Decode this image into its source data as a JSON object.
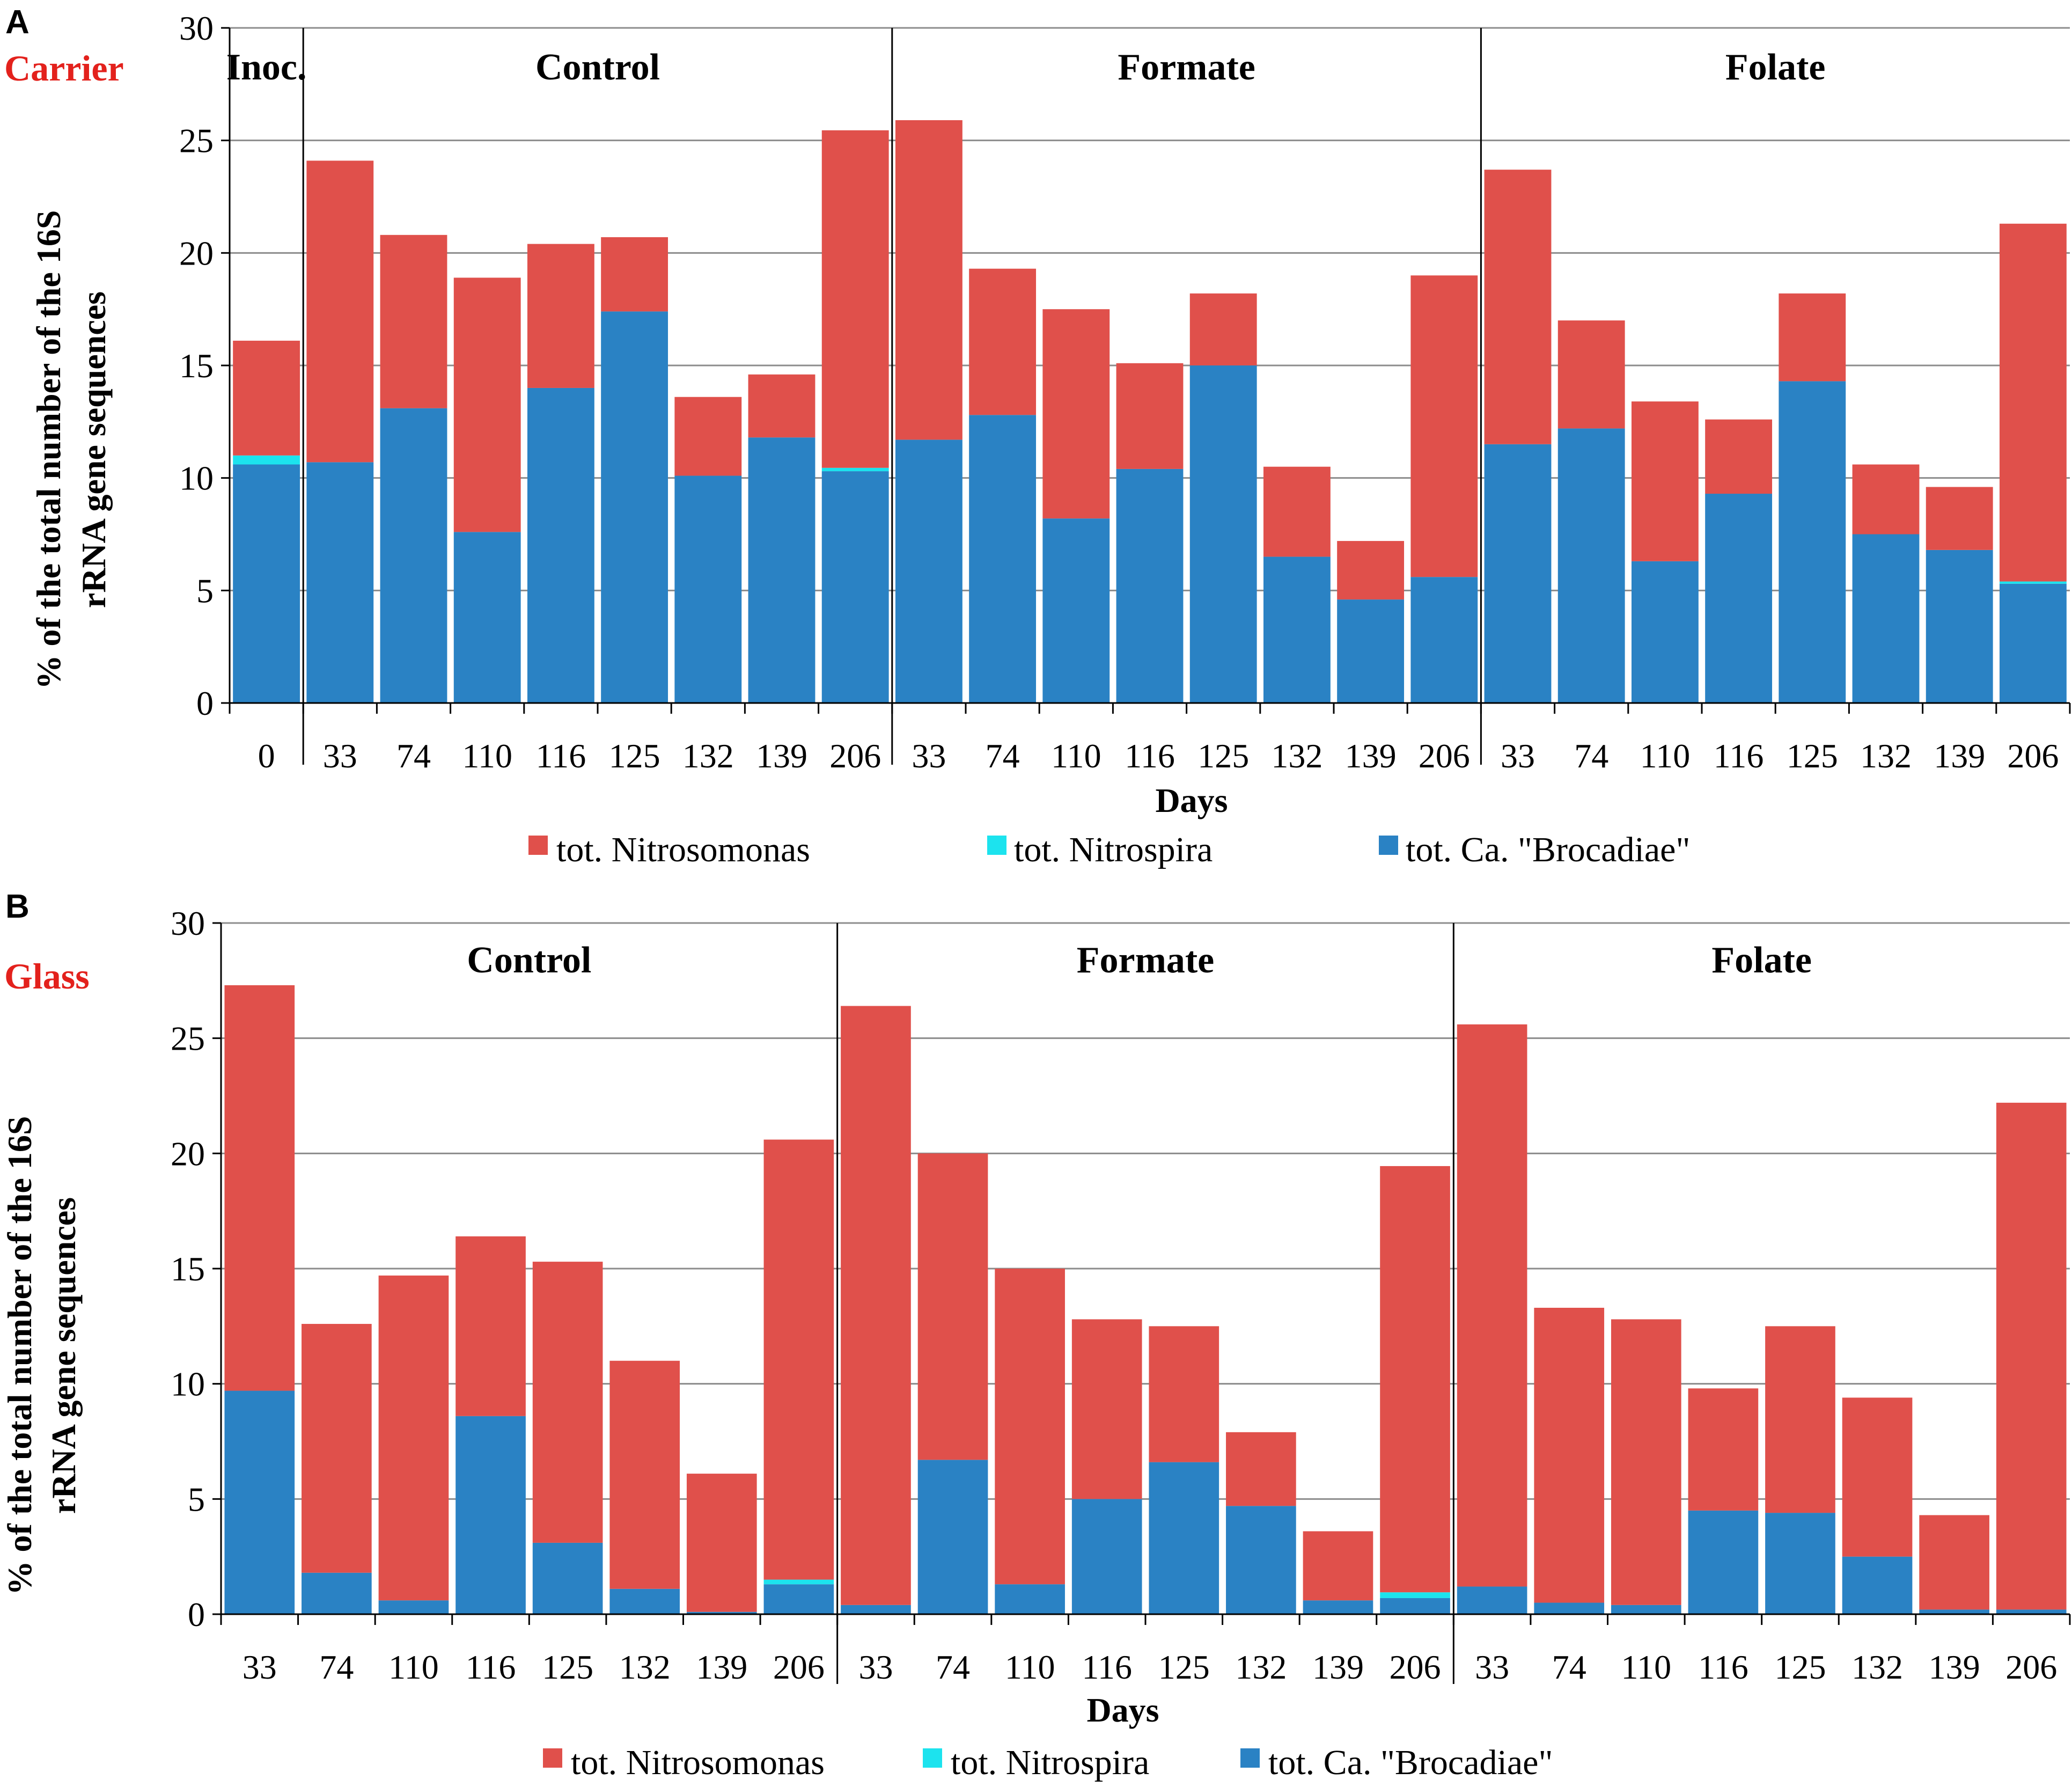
{
  "colors": {
    "nitrosomonas": "#e0504b",
    "nitrospira": "#1ce3ee",
    "brocadiae": "#2a82c4"
  },
  "legend": [
    "tot. Nitrosomonas",
    "tot. Nitrospira",
    "tot. Ca. \"Brocadiae\""
  ],
  "chart_data": [
    {
      "type": "bar",
      "stacked": true,
      "panel": "A",
      "label": "Carrier",
      "xlabel": "Days",
      "ylabel": [
        "% of the total number of the 16S",
        "rRNA gene sequences"
      ],
      "ylim": [
        0,
        30
      ],
      "yticks": [
        "0",
        "5",
        "10",
        "15",
        "20",
        "25",
        "30"
      ],
      "groups": [
        {
          "name": "Inoc.",
          "start": 0,
          "count": 1
        },
        {
          "name": "Control",
          "start": 1,
          "count": 8
        },
        {
          "name": "Formate",
          "start": 9,
          "count": 8
        },
        {
          "name": "Folate",
          "start": 17,
          "count": 8
        }
      ],
      "categories": [
        "0",
        "33",
        "74",
        "110",
        "116",
        "125",
        "132",
        "139",
        "206",
        "33",
        "74",
        "110",
        "116",
        "125",
        "132",
        "139",
        "206",
        "33",
        "74",
        "110",
        "116",
        "125",
        "132",
        "139",
        "206"
      ],
      "series": [
        {
          "name": "tot. Ca. \"Brocadiae\"",
          "key": "brocadiae",
          "values": [
            10.6,
            10.7,
            13.1,
            7.6,
            14.0,
            17.4,
            10.1,
            11.8,
            10.3,
            11.7,
            12.8,
            8.2,
            10.4,
            15.0,
            6.5,
            4.6,
            5.6,
            11.5,
            12.2,
            6.3,
            9.3,
            14.3,
            7.5,
            6.8,
            5.3
          ]
        },
        {
          "name": "tot. Nitrospira",
          "key": "nitrospira",
          "values": [
            0.4,
            0,
            0,
            0,
            0,
            0,
            0,
            0,
            0.15,
            0,
            0,
            0,
            0,
            0,
            0,
            0,
            0,
            0,
            0,
            0,
            0,
            0,
            0,
            0,
            0.1
          ]
        },
        {
          "name": "tot. Nitrosomonas",
          "key": "nitrosomonas",
          "values": [
            5.1,
            13.4,
            7.7,
            11.3,
            6.4,
            3.3,
            3.5,
            2.8,
            15.0,
            14.2,
            6.5,
            9.3,
            4.7,
            3.2,
            4.0,
            2.6,
            13.4,
            12.2,
            4.8,
            7.1,
            3.3,
            3.9,
            3.1,
            2.8,
            15.9
          ]
        }
      ]
    },
    {
      "type": "bar",
      "stacked": true,
      "panel": "B",
      "label": "Glass",
      "xlabel": "Days",
      "ylabel": [
        "% of the total number of the 16S",
        "rRNA gene sequences"
      ],
      "ylim": [
        0,
        30
      ],
      "yticks": [
        "0",
        "5",
        "10",
        "15",
        "20",
        "25",
        "30"
      ],
      "groups": [
        {
          "name": "Control",
          "start": 0,
          "count": 8
        },
        {
          "name": "Formate",
          "start": 8,
          "count": 8
        },
        {
          "name": "Folate",
          "start": 16,
          "count": 8
        }
      ],
      "categories": [
        "33",
        "74",
        "110",
        "116",
        "125",
        "132",
        "139",
        "206",
        "33",
        "74",
        "110",
        "116",
        "125",
        "132",
        "139",
        "206",
        "33",
        "74",
        "110",
        "116",
        "125",
        "132",
        "139",
        "206"
      ],
      "series": [
        {
          "name": "tot. Ca. \"Brocadiae\"",
          "key": "brocadiae",
          "values": [
            9.7,
            1.8,
            0.6,
            8.6,
            3.1,
            1.1,
            0.1,
            1.3,
            0.4,
            6.7,
            1.3,
            5.0,
            6.6,
            4.7,
            0.6,
            0.7,
            1.2,
            0.5,
            0.4,
            4.5,
            4.4,
            2.5,
            0.2,
            0.2
          ]
        },
        {
          "name": "tot. Nitrospira",
          "key": "nitrospira",
          "values": [
            0,
            0,
            0,
            0,
            0,
            0,
            0,
            0.2,
            0,
            0,
            0,
            0,
            0,
            0,
            0,
            0.25,
            0,
            0,
            0,
            0,
            0,
            0,
            0,
            0
          ]
        },
        {
          "name": "tot. Nitrosomonas",
          "key": "nitrosomonas",
          "values": [
            17.6,
            10.8,
            14.1,
            7.8,
            12.2,
            9.9,
            6.0,
            19.1,
            26.0,
            13.3,
            13.7,
            7.8,
            5.9,
            3.2,
            3.0,
            18.5,
            24.4,
            12.8,
            12.4,
            5.3,
            8.1,
            6.9,
            4.1,
            22.0
          ]
        }
      ]
    }
  ]
}
